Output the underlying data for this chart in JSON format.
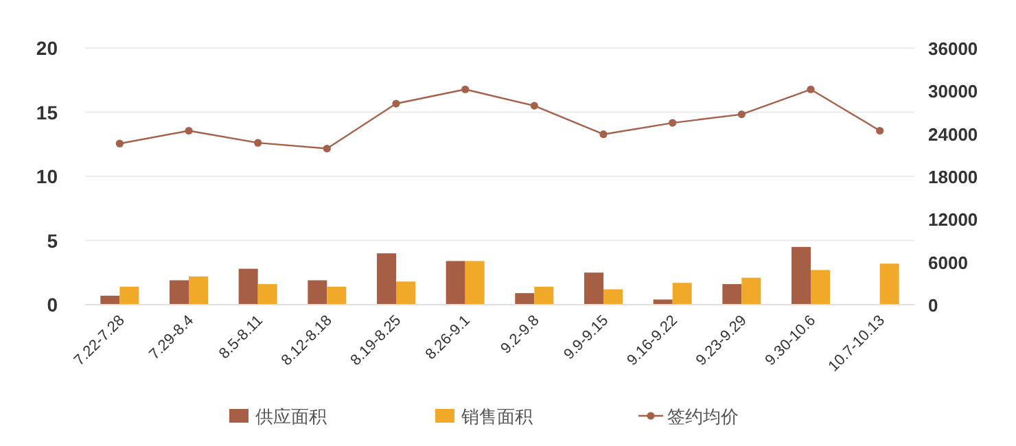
{
  "chart_data": {
    "type": "bar",
    "categories": [
      "7.22-7.28",
      "7.29-8.4",
      "8.5-8.11",
      "8.12-8.18",
      "8.19-8.25",
      "8.26-9.1",
      "9.2-9.8",
      "9.9-9.15",
      "9.16-9.22",
      "9.23-9.29",
      "9.30-10.6",
      "10.7-10.13"
    ],
    "series": [
      {
        "name": "供应面积",
        "color": "#a65f44",
        "values": [
          0.7,
          1.9,
          2.8,
          1.9,
          4.0,
          3.4,
          0.9,
          2.5,
          0.4,
          1.6,
          4.5,
          null
        ]
      },
      {
        "name": "销售面积",
        "color": "#f0a929",
        "values": [
          1.4,
          2.2,
          1.6,
          1.4,
          1.8,
          3.4,
          1.4,
          1.2,
          1.7,
          2.1,
          2.7,
          3.2
        ]
      },
      {
        "name": "签约均价",
        "type": "line",
        "axis": "y2",
        "color": "#a5614a",
        "marker": "circle",
        "values": [
          22600,
          24400,
          22700,
          21900,
          28200,
          30200,
          27900,
          23900,
          25500,
          26700,
          30200,
          24400
        ]
      }
    ],
    "ylim": [
      0,
      20
    ],
    "yticks": [
      0,
      5,
      10,
      15,
      20
    ],
    "y2lim": [
      0,
      36000
    ],
    "y2ticks": [
      0,
      6000,
      12000,
      18000,
      24000,
      30000,
      36000
    ],
    "grid": "y",
    "legend": "bottom"
  }
}
